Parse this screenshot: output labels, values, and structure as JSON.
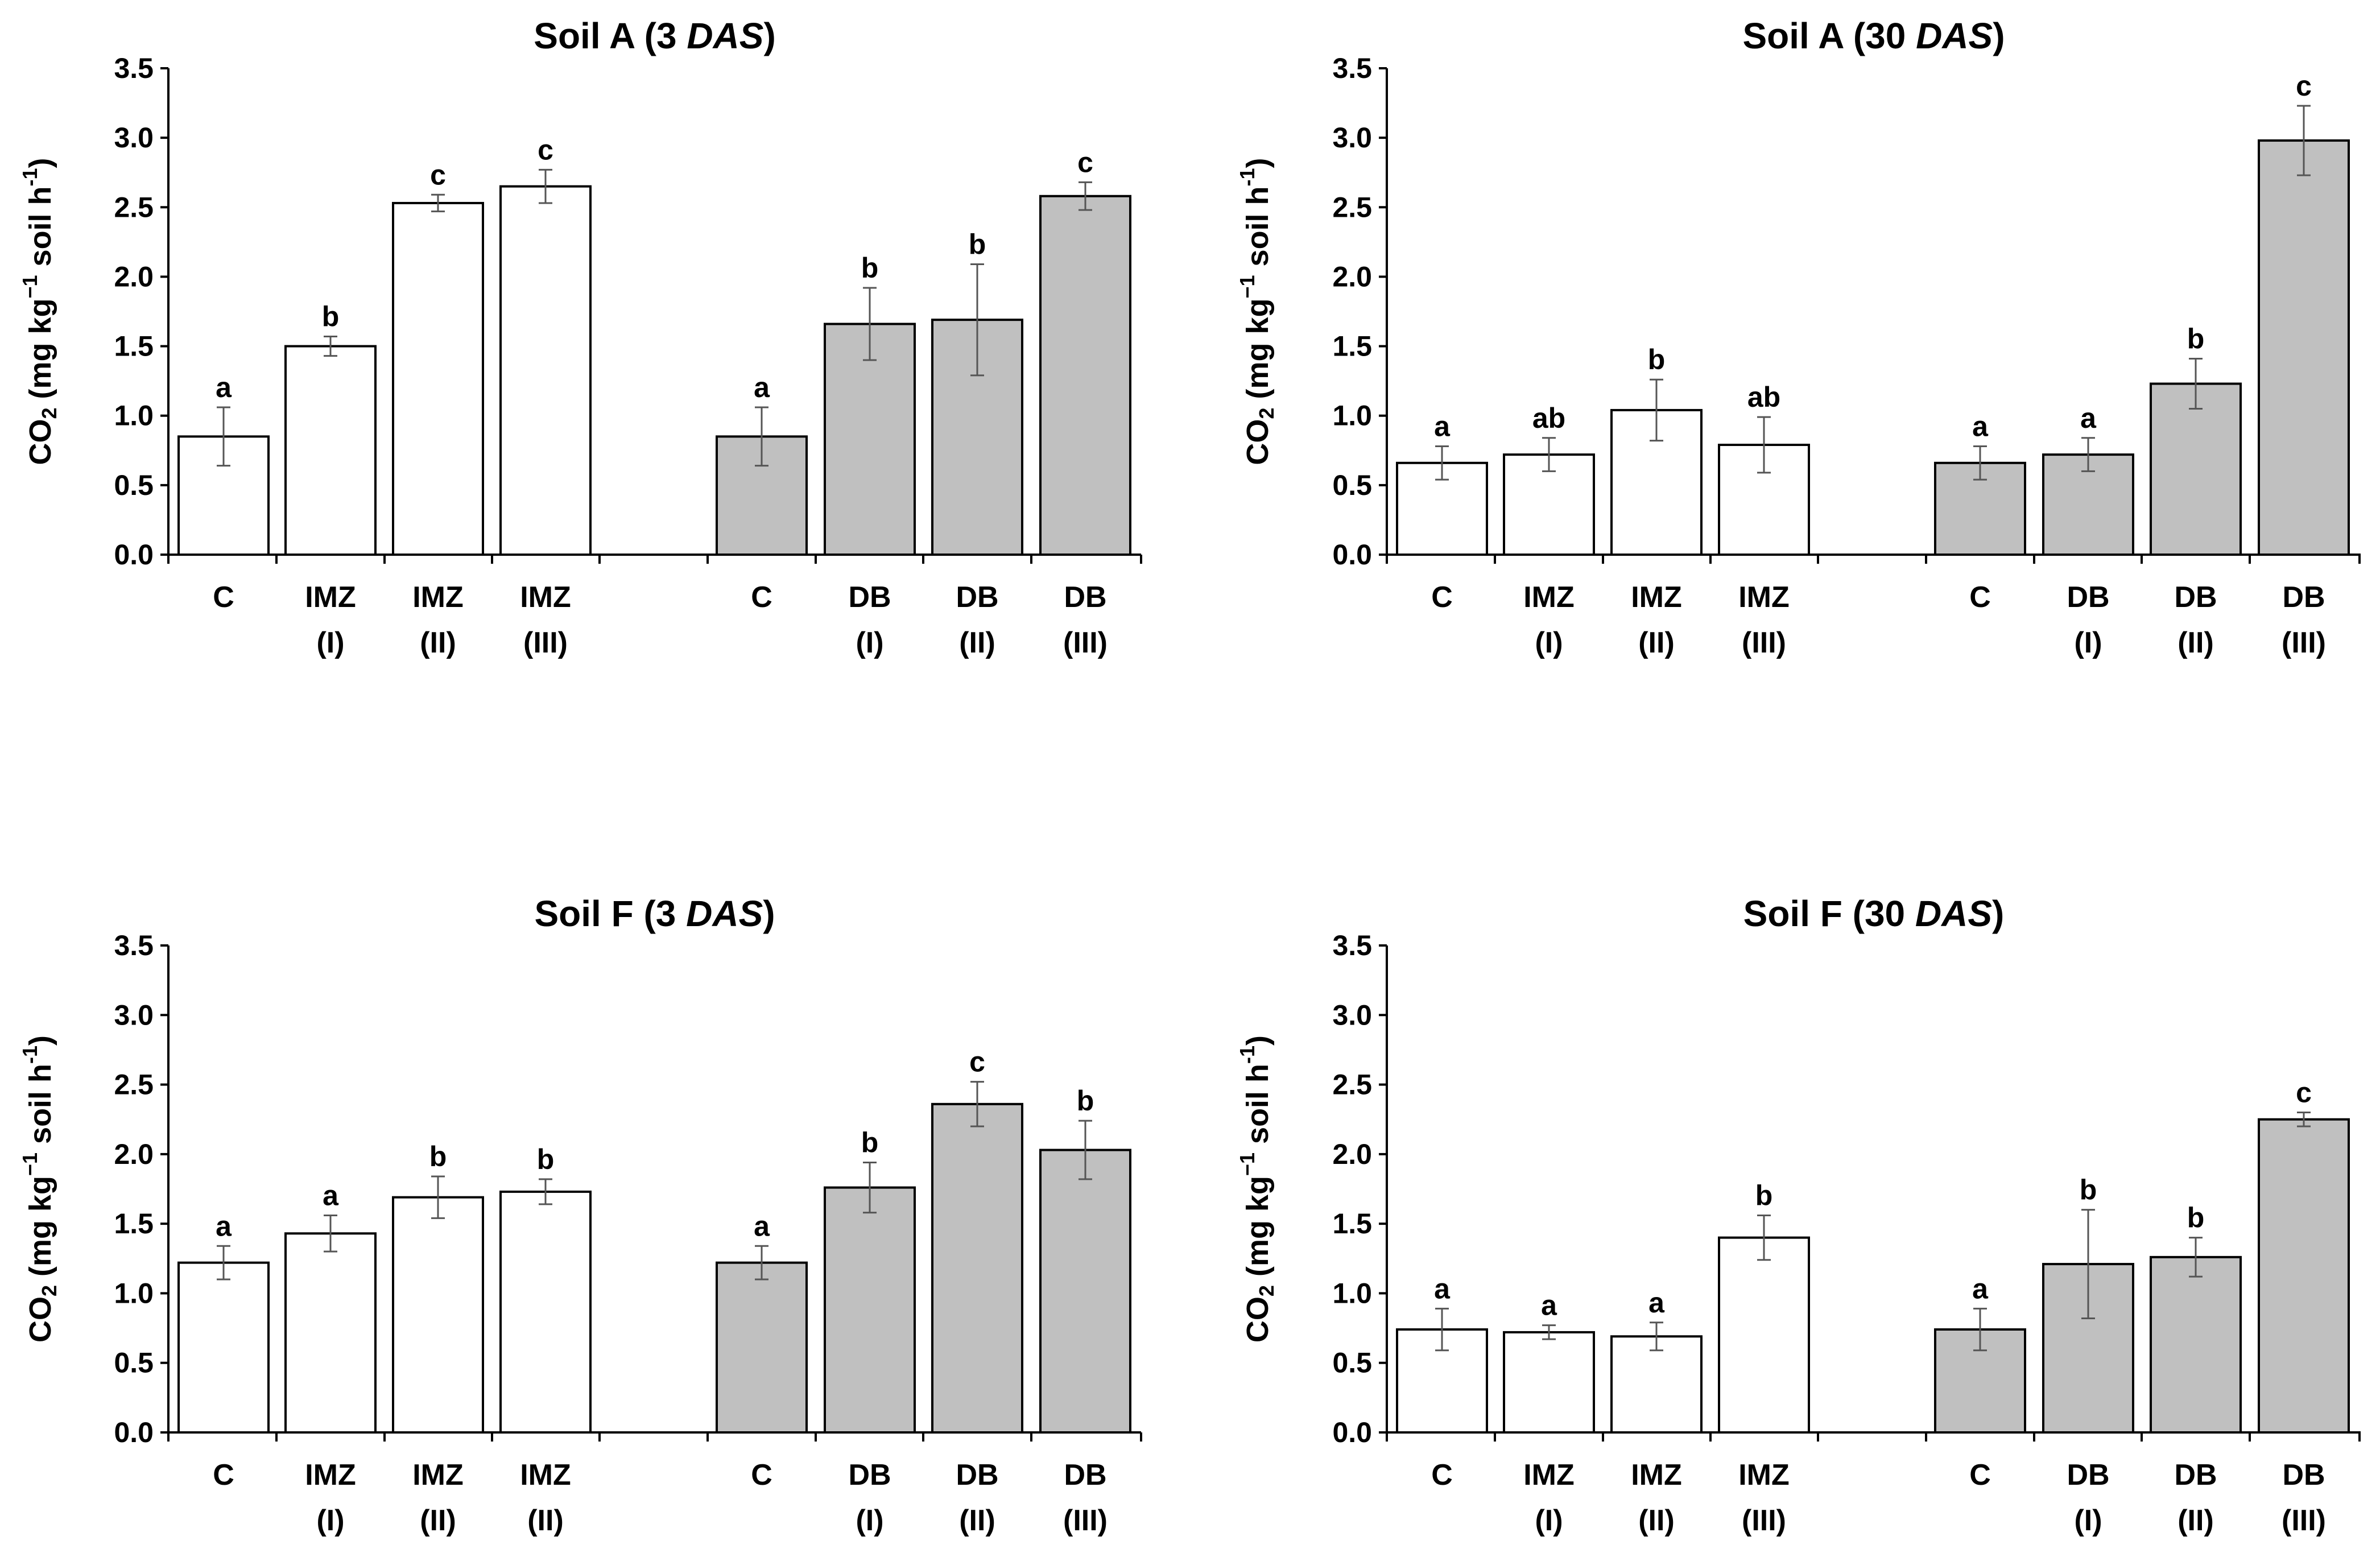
{
  "figure": {
    "bar_colors": {
      "white": "#ffffff",
      "gray": "#c0c0c0"
    },
    "stroke": "#000000",
    "errorbar": "#555555"
  },
  "chart_data": [
    {
      "type": "bar",
      "title_parts": [
        "Soil A (3 ",
        "DAS",
        ")"
      ],
      "ylabel_parts": [
        "CO",
        "2",
        " (mg kg",
        "−1",
        " soil h",
        "-1",
        ")"
      ],
      "ylim": [
        0,
        3.5
      ],
      "yticks": [
        "0.0",
        "0.5",
        "1.0",
        "1.5",
        "2.0",
        "2.5",
        "3.0",
        "3.5"
      ],
      "grid": false,
      "bars": [
        {
          "line1": "C",
          "line2": "",
          "value": 0.85,
          "err": 0.21,
          "letter": "a",
          "fill": "white"
        },
        {
          "line1": "IMZ",
          "line2": "(I)",
          "value": 1.5,
          "err": 0.07,
          "letter": "b",
          "fill": "white"
        },
        {
          "line1": "IMZ",
          "line2": "(II)",
          "value": 2.53,
          "err": 0.06,
          "letter": "c",
          "fill": "white"
        },
        {
          "line1": "IMZ",
          "line2": "(III)",
          "value": 2.65,
          "err": 0.12,
          "letter": "c",
          "fill": "white"
        },
        {
          "line1": "C",
          "line2": "",
          "value": 0.85,
          "err": 0.21,
          "letter": "a",
          "fill": "gray"
        },
        {
          "line1": "DB",
          "line2": "(I)",
          "value": 1.66,
          "err": 0.26,
          "letter": "b",
          "fill": "gray"
        },
        {
          "line1": "DB",
          "line2": "(II)",
          "value": 1.69,
          "err": 0.4,
          "letter": "b",
          "fill": "gray"
        },
        {
          "line1": "DB",
          "line2": "(III)",
          "value": 2.58,
          "err": 0.1,
          "letter": "c",
          "fill": "gray"
        }
      ]
    },
    {
      "type": "bar",
      "title_parts": [
        "Soil A (30 ",
        "DAS",
        ")"
      ],
      "ylabel_parts": [
        "CO",
        "2",
        " (mg kg",
        "−1",
        " soil h",
        "-1",
        ")"
      ],
      "ylim": [
        0,
        3.5
      ],
      "yticks": [
        "0.0",
        "0.5",
        "1.0",
        "1.5",
        "2.0",
        "2.5",
        "3.0",
        "3.5"
      ],
      "grid": false,
      "bars": [
        {
          "line1": "C",
          "line2": "",
          "value": 0.66,
          "err": 0.12,
          "letter": "a",
          "fill": "white"
        },
        {
          "line1": "IMZ",
          "line2": "(I)",
          "value": 0.72,
          "err": 0.12,
          "letter": "ab",
          "fill": "white"
        },
        {
          "line1": "IMZ",
          "line2": "(II)",
          "value": 1.04,
          "err": 0.22,
          "letter": "b",
          "fill": "white"
        },
        {
          "line1": "IMZ",
          "line2": "(III)",
          "value": 0.79,
          "err": 0.2,
          "letter": "ab",
          "fill": "white"
        },
        {
          "line1": "C",
          "line2": "",
          "value": 0.66,
          "err": 0.12,
          "letter": "a",
          "fill": "gray"
        },
        {
          "line1": "DB",
          "line2": "(I)",
          "value": 0.72,
          "err": 0.12,
          "letter": "a",
          "fill": "gray"
        },
        {
          "line1": "DB",
          "line2": "(II)",
          "value": 1.23,
          "err": 0.18,
          "letter": "b",
          "fill": "gray"
        },
        {
          "line1": "DB",
          "line2": "(III)",
          "value": 2.98,
          "err": 0.25,
          "letter": "c",
          "fill": "gray"
        }
      ]
    },
    {
      "type": "bar",
      "title_parts": [
        "Soil F (3 ",
        "DAS",
        ")"
      ],
      "ylabel_parts": [
        "CO",
        "2",
        " (mg kg",
        "−1",
        " soil h",
        "-1",
        ")"
      ],
      "ylim": [
        0,
        3.5
      ],
      "yticks": [
        "0.0",
        "0.5",
        "1.0",
        "1.5",
        "2.0",
        "2.5",
        "3.0",
        "3.5"
      ],
      "grid": false,
      "bars": [
        {
          "line1": "C",
          "line2": "",
          "value": 1.22,
          "err": 0.12,
          "letter": "a",
          "fill": "white"
        },
        {
          "line1": "IMZ",
          "line2": "(I)",
          "value": 1.43,
          "err": 0.13,
          "letter": "a",
          "fill": "white"
        },
        {
          "line1": "IMZ",
          "line2": "(II)",
          "value": 1.69,
          "err": 0.15,
          "letter": "b",
          "fill": "white"
        },
        {
          "line1": "IMZ",
          "line2": "(II)",
          "value": 1.73,
          "err": 0.09,
          "letter": "b",
          "fill": "white"
        },
        {
          "line1": "C",
          "line2": "",
          "value": 1.22,
          "err": 0.12,
          "letter": "a",
          "fill": "gray"
        },
        {
          "line1": "DB",
          "line2": "(I)",
          "value": 1.76,
          "err": 0.18,
          "letter": "b",
          "fill": "gray"
        },
        {
          "line1": "DB",
          "line2": "(II)",
          "value": 2.36,
          "err": 0.16,
          "letter": "c",
          "fill": "gray"
        },
        {
          "line1": "DB",
          "line2": "(III)",
          "value": 2.03,
          "err": 0.21,
          "letter": "b",
          "fill": "gray"
        }
      ]
    },
    {
      "type": "bar",
      "title_parts": [
        "Soil F (30 ",
        "DAS",
        ")"
      ],
      "ylabel_parts": [
        "CO",
        "2",
        " (mg kg",
        "−1",
        " soil h",
        "-1",
        ")"
      ],
      "ylim": [
        0,
        3.5
      ],
      "yticks": [
        "0.0",
        "0.5",
        "1.0",
        "1.5",
        "2.0",
        "2.5",
        "3.0",
        "3.5"
      ],
      "grid": false,
      "bars": [
        {
          "line1": "C",
          "line2": "",
          "value": 0.74,
          "err": 0.15,
          "letter": "a",
          "fill": "white"
        },
        {
          "line1": "IMZ",
          "line2": "(I)",
          "value": 0.72,
          "err": 0.05,
          "letter": "a",
          "fill": "white"
        },
        {
          "line1": "IMZ",
          "line2": "(II)",
          "value": 0.69,
          "err": 0.1,
          "letter": "a",
          "fill": "white"
        },
        {
          "line1": "IMZ",
          "line2": "(III)",
          "value": 1.4,
          "err": 0.16,
          "letter": "b",
          "fill": "white"
        },
        {
          "line1": "C",
          "line2": "",
          "value": 0.74,
          "err": 0.15,
          "letter": "a",
          "fill": "gray"
        },
        {
          "line1": "DB",
          "line2": "(I)",
          "value": 1.21,
          "err": 0.39,
          "letter": "b",
          "fill": "gray"
        },
        {
          "line1": "DB",
          "line2": "(II)",
          "value": 1.26,
          "err": 0.14,
          "letter": "b",
          "fill": "gray"
        },
        {
          "line1": "DB",
          "line2": "(III)",
          "value": 2.25,
          "err": 0.05,
          "letter": "c",
          "fill": "gray"
        }
      ]
    }
  ]
}
